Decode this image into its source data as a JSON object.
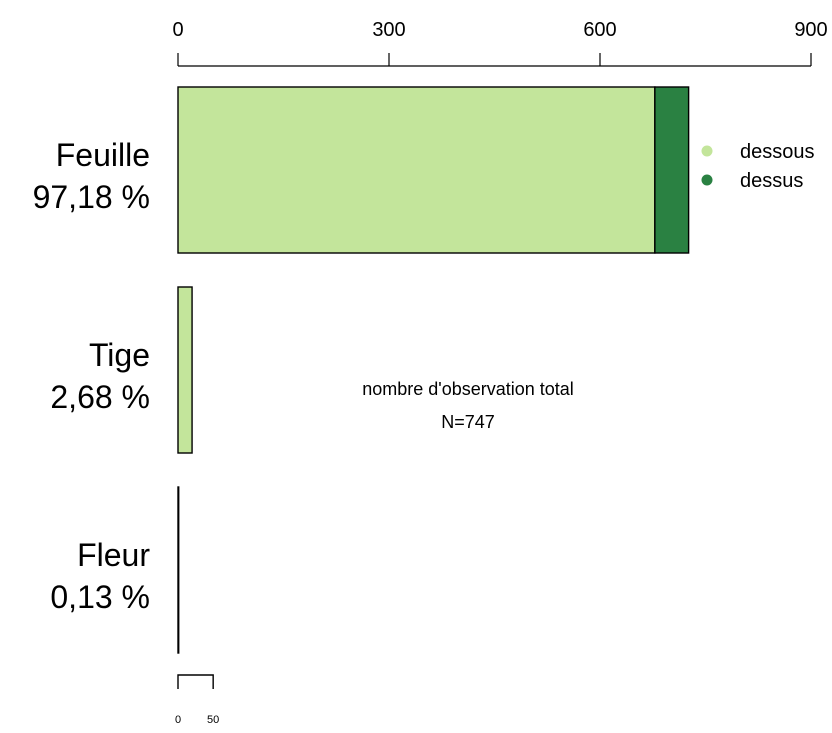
{
  "chart_data": {
    "type": "bar",
    "orientation": "horizontal",
    "stacked": true,
    "title": "",
    "xlabel": "",
    "ylabel": "",
    "xlim": [
      0,
      900
    ],
    "x_ticks": [
      0,
      300,
      600,
      900
    ],
    "x_axis_position": "top",
    "grid": false,
    "categories": [
      "Feuille",
      "Tige",
      "Fleur"
    ],
    "category_percent_labels": [
      "97,18 %",
      "2,68 %",
      "0,13 %"
    ],
    "series": [
      {
        "name": "dessous",
        "color": "#c3e59b",
        "values": [
          678,
          20,
          1
        ]
      },
      {
        "name": "dessus",
        "color": "#2a8142",
        "values": [
          48,
          0,
          0
        ]
      }
    ],
    "legend": {
      "placement": "top-right",
      "entries": [
        "dessous",
        "dessus"
      ]
    },
    "annotation": {
      "line1": "nombre d'observation total",
      "line2": "N=747"
    },
    "scale_bar": {
      "from": 0,
      "to": 50,
      "labels": [
        "0",
        "50"
      ]
    }
  }
}
